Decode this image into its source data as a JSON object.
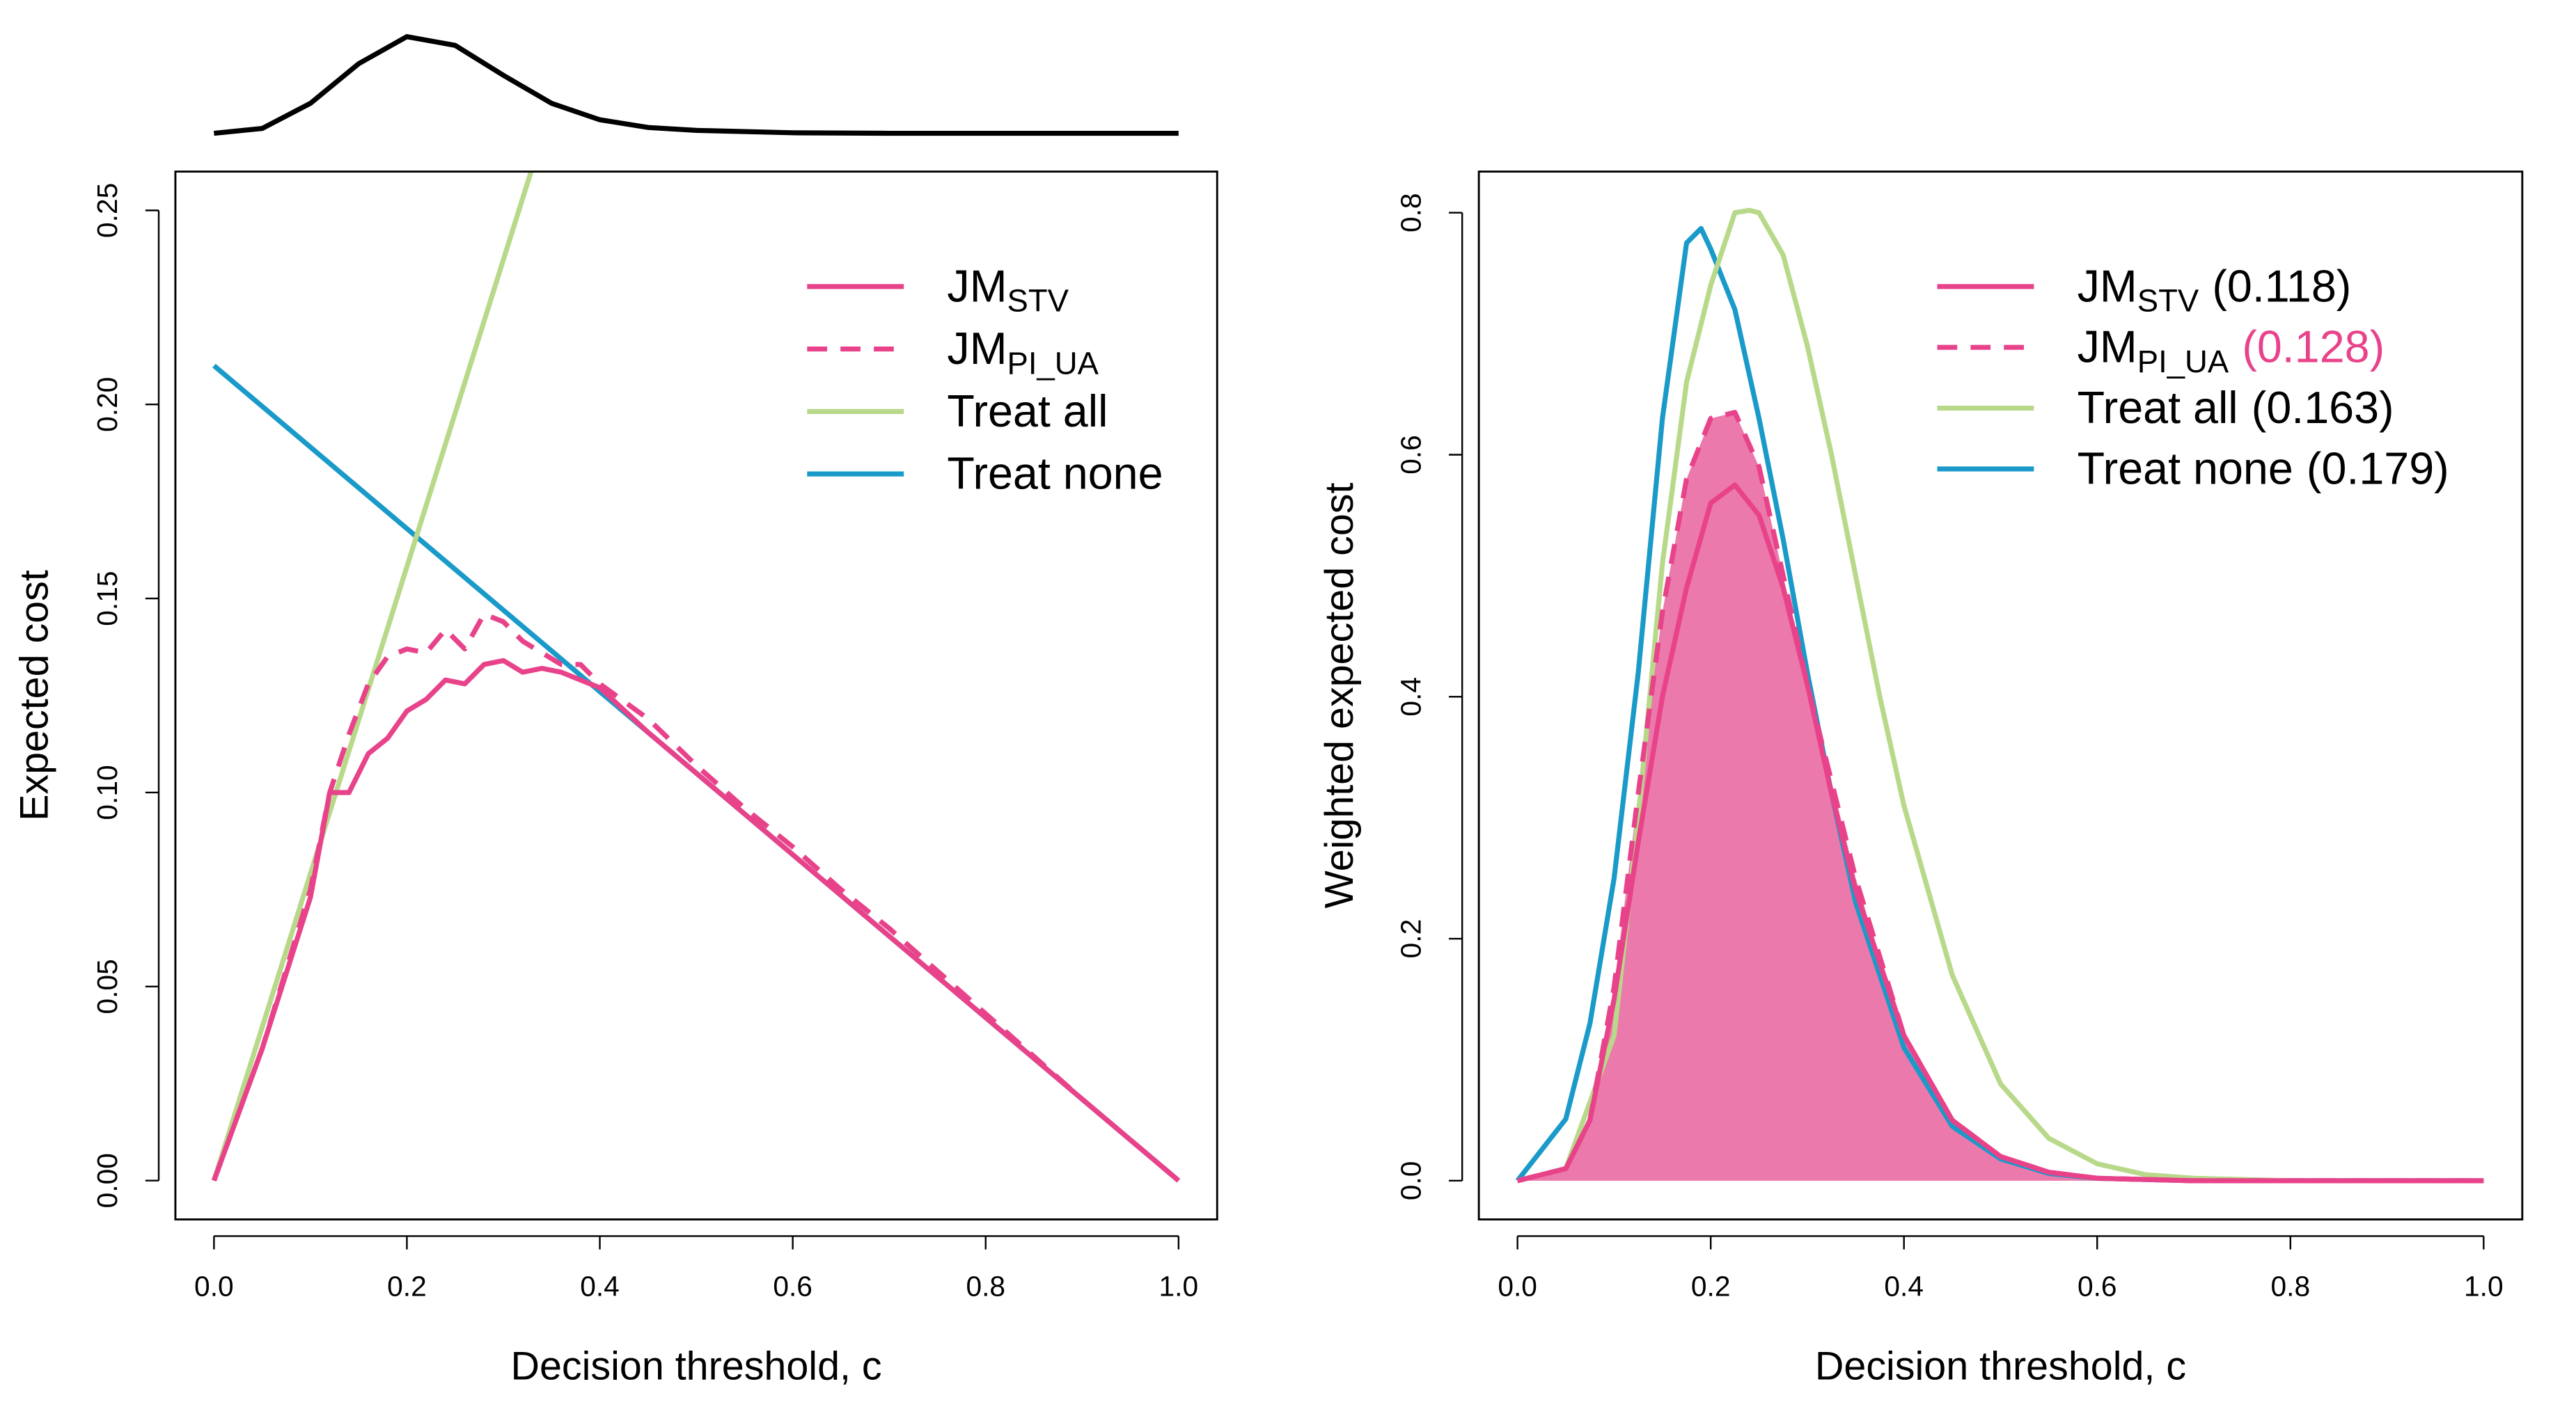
{
  "chart_data": [
    {
      "type": "line",
      "xlabel": "Decision threshold, c",
      "ylabel": "Expected cost",
      "xlim": [
        -0.04,
        1.04
      ],
      "ylim": [
        -0.01,
        0.26
      ],
      "xticks": [
        {
          "value": 0,
          "label": "0.0"
        },
        {
          "value": 0.2,
          "label": "0.2"
        },
        {
          "value": 0.4,
          "label": "0.4"
        },
        {
          "value": 0.6,
          "label": "0.6"
        },
        {
          "value": 0.8,
          "label": "0.8"
        },
        {
          "value": 1,
          "label": "1.0"
        }
      ],
      "yticks": [
        {
          "value": 0,
          "label": "0.00"
        },
        {
          "value": 0.05,
          "label": "0.05"
        },
        {
          "value": 0.1,
          "label": "0.10"
        },
        {
          "value": 0.15,
          "label": "0.15"
        },
        {
          "value": 0.2,
          "label": "0.20"
        },
        {
          "value": 0.25,
          "label": "0.25"
        }
      ],
      "density": {
        "color": "#000000",
        "ylim": [
          0,
          1
        ],
        "x": [
          0,
          0.05,
          0.1,
          0.15,
          0.2,
          0.25,
          0.3,
          0.35,
          0.4,
          0.45,
          0.5,
          0.6,
          0.7,
          1.0
        ],
        "values": [
          0,
          0.05,
          0.31,
          0.72,
          1,
          0.91,
          0.6,
          0.31,
          0.14,
          0.06,
          0.03,
          0.005,
          0,
          0
        ]
      },
      "series": [
        {
          "name": "JM",
          "subscript": "STV",
          "color": "#e8438a",
          "dash": false,
          "x": [
            0,
            0.05,
            0.1,
            0.12,
            0.14,
            0.16,
            0.18,
            0.2,
            0.22,
            0.24,
            0.26,
            0.28,
            0.3,
            0.32,
            0.34,
            0.36,
            0.38,
            0.4,
            0.45,
            0.5,
            0.6,
            0.7,
            0.8,
            0.9,
            1.0
          ],
          "values": [
            0,
            0.034,
            0.073,
            0.1,
            0.1,
            0.11,
            0.114,
            0.121,
            0.124,
            0.129,
            0.128,
            0.133,
            0.134,
            0.131,
            0.132,
            0.131,
            0.129,
            0.127,
            0.1155,
            0.105,
            0.084,
            0.063,
            0.042,
            0.021,
            0
          ]
        },
        {
          "name": "JM",
          "subscript": "PI_UA",
          "color": "#e8438a",
          "dash": true,
          "x": [
            0,
            0.05,
            0.1,
            0.12,
            0.14,
            0.16,
            0.18,
            0.2,
            0.22,
            0.24,
            0.26,
            0.28,
            0.3,
            0.32,
            0.34,
            0.36,
            0.38,
            0.4,
            0.45,
            0.5,
            0.55,
            0.6,
            0.65,
            0.7,
            0.8,
            0.9,
            1.0
          ],
          "values": [
            0,
            0.034,
            0.075,
            0.1,
            0.115,
            0.128,
            0.135,
            0.137,
            0.136,
            0.142,
            0.137,
            0.146,
            0.144,
            0.139,
            0.136,
            0.133,
            0.133,
            0.128,
            0.119,
            0.107,
            0.096,
            0.086,
            0.075,
            0.065,
            0.043,
            0.021,
            0
          ]
        },
        {
          "name": "Treat all",
          "color": "#b8d98a",
          "dash": false,
          "x": [
            0,
            0.33
          ],
          "values": [
            0,
            0.261
          ]
        },
        {
          "name": "Treat none",
          "color": "#1a9ac9",
          "dash": false,
          "x": [
            0,
            1
          ],
          "values": [
            0.21,
            0
          ]
        }
      ]
    },
    {
      "type": "line",
      "xlabel": "Decision threshold, c",
      "ylabel": "Weighted expected cost",
      "xlim": [
        -0.04,
        1.04
      ],
      "ylim": [
        -0.032,
        0.834
      ],
      "xticks": [
        {
          "value": 0,
          "label": "0.0"
        },
        {
          "value": 0.2,
          "label": "0.2"
        },
        {
          "value": 0.4,
          "label": "0.4"
        },
        {
          "value": 0.6,
          "label": "0.6"
        },
        {
          "value": 0.8,
          "label": "0.8"
        },
        {
          "value": 1,
          "label": "1.0"
        }
      ],
      "yticks": [
        {
          "value": 0,
          "label": "0.0"
        },
        {
          "value": 0.2,
          "label": "0.2"
        },
        {
          "value": 0.4,
          "label": "0.4"
        },
        {
          "value": 0.6,
          "label": "0.6"
        },
        {
          "value": 0.8,
          "label": "0.8"
        }
      ],
      "fill_series": 1,
      "fill_color": "#ec79ab",
      "series": [
        {
          "name": "JM",
          "subscript": "STV",
          "score_label": "(0.118)",
          "score_color": "#000000",
          "color": "#e8438a",
          "dash": false,
          "x": [
            0,
            0.05,
            0.075,
            0.1,
            0.125,
            0.15,
            0.175,
            0.2,
            0.225,
            0.25,
            0.275,
            0.3,
            0.325,
            0.35,
            0.4,
            0.45,
            0.5,
            0.55,
            0.6,
            0.7,
            1.0
          ],
          "values": [
            0,
            0.01,
            0.05,
            0.15,
            0.28,
            0.4,
            0.49,
            0.56,
            0.575,
            0.55,
            0.49,
            0.41,
            0.32,
            0.24,
            0.12,
            0.05,
            0.02,
            0.007,
            0.002,
            0,
            0
          ]
        },
        {
          "name": "JM",
          "subscript": "PI_UA",
          "score_label": "(0.128)",
          "score_color": "#e8438a",
          "color": "#e8438a",
          "dash": true,
          "x": [
            0,
            0.05,
            0.075,
            0.1,
            0.125,
            0.15,
            0.175,
            0.2,
            0.225,
            0.25,
            0.275,
            0.3,
            0.325,
            0.35,
            0.4,
            0.45,
            0.5,
            0.55,
            0.6,
            0.7,
            1.0
          ],
          "values": [
            0,
            0.01,
            0.05,
            0.16,
            0.32,
            0.47,
            0.58,
            0.63,
            0.635,
            0.59,
            0.5,
            0.41,
            0.33,
            0.25,
            0.12,
            0.05,
            0.02,
            0.007,
            0.002,
            0,
            0
          ]
        },
        {
          "name": "Treat all",
          "score_label": "(0.163)",
          "score_color": "#000000",
          "color": "#b8d98a",
          "dash": false,
          "x": [
            0,
            0.05,
            0.1,
            0.125,
            0.15,
            0.175,
            0.2,
            0.225,
            0.24,
            0.25,
            0.275,
            0.3,
            0.325,
            0.35,
            0.375,
            0.4,
            0.45,
            0.5,
            0.55,
            0.6,
            0.65,
            0.7,
            0.8,
            1.0
          ],
          "values": [
            0,
            0.01,
            0.12,
            0.3,
            0.51,
            0.66,
            0.74,
            0.8,
            0.802,
            0.8,
            0.765,
            0.69,
            0.6,
            0.5,
            0.4,
            0.31,
            0.17,
            0.08,
            0.035,
            0.014,
            0.005,
            0.002,
            0,
            0
          ]
        },
        {
          "name": "Treat none",
          "score_label": "(0.179)",
          "score_color": "#000000",
          "color": "#1a9ac9",
          "dash": false,
          "x": [
            0,
            0.05,
            0.075,
            0.1,
            0.125,
            0.15,
            0.175,
            0.19,
            0.2,
            0.225,
            0.25,
            0.275,
            0.3,
            0.325,
            0.35,
            0.4,
            0.45,
            0.5,
            0.55,
            0.6,
            0.7,
            0.8,
            0.9,
            1.0
          ],
          "values": [
            0,
            0.051,
            0.13,
            0.25,
            0.42,
            0.63,
            0.775,
            0.787,
            0.77,
            0.72,
            0.63,
            0.53,
            0.42,
            0.32,
            0.23,
            0.11,
            0.045,
            0.018,
            0.006,
            0.002,
            0,
            0,
            0,
            0
          ]
        }
      ]
    }
  ]
}
